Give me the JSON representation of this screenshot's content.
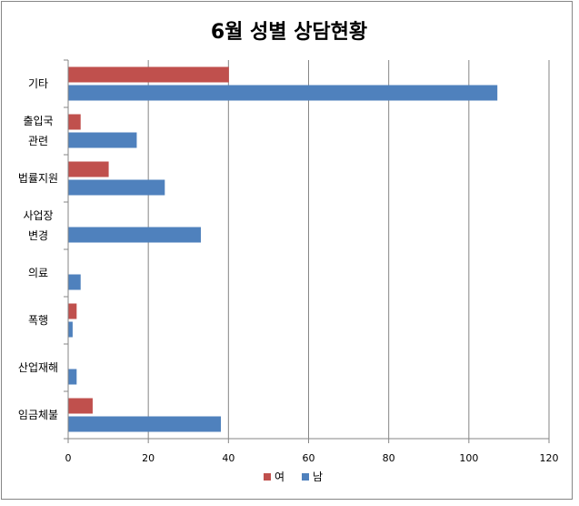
{
  "chart_data": {
    "type": "bar",
    "orientation": "horizontal",
    "title": "6월 성별 상담현황",
    "categories": [
      [
        "기타"
      ],
      [
        "출입국",
        "관련"
      ],
      [
        "법률지원"
      ],
      [
        "사업장",
        "변경"
      ],
      [
        "의료"
      ],
      [
        "폭행"
      ],
      [
        "산업재해"
      ],
      [
        "임금체불"
      ]
    ],
    "series": [
      {
        "name": "여",
        "color": "#c0504d",
        "values": [
          40,
          3,
          10,
          0,
          0,
          2,
          0,
          6
        ]
      },
      {
        "name": "남",
        "color": "#4f81bd",
        "values": [
          107,
          17,
          24,
          33,
          3,
          1,
          2,
          38
        ]
      }
    ],
    "xlim": [
      0,
      120
    ],
    "xticks": [
      0,
      20,
      40,
      60,
      80,
      100,
      120
    ],
    "grid": "vertical",
    "legend": "bottom"
  }
}
